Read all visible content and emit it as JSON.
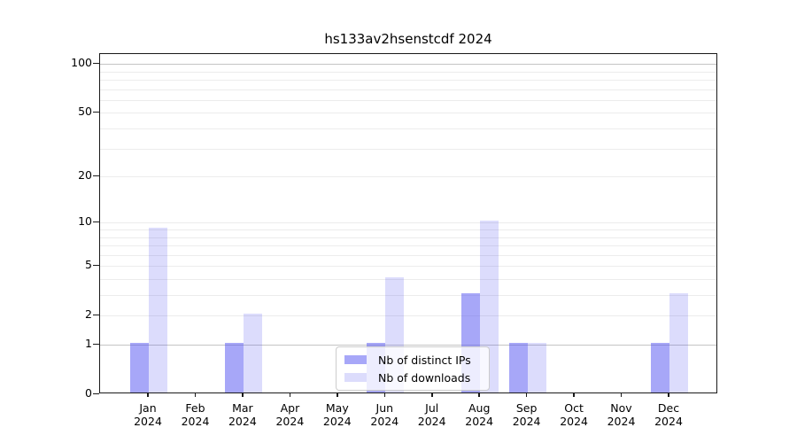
{
  "chart_data": {
    "type": "bar",
    "title": "hs133av2hsenstcdf 2024",
    "categories": [
      "Jan 2024",
      "Feb 2024",
      "Mar 2024",
      "Apr 2024",
      "May 2024",
      "Jun 2024",
      "Jul 2024",
      "Aug 2024",
      "Sep 2024",
      "Oct 2024",
      "Nov 2024",
      "Dec 2024"
    ],
    "series": [
      {
        "name": "Nb of distinct IPs",
        "color": "rgba(80,80,242,0.5)",
        "values": [
          1,
          0,
          1,
          0,
          0,
          1,
          0,
          3,
          1,
          0,
          0,
          1
        ]
      },
      {
        "name": "Nb of downloads",
        "color": "rgba(80,80,242,0.2)",
        "values": [
          9,
          0,
          2,
          0,
          0,
          4,
          0,
          10,
          1,
          0,
          0,
          3
        ]
      }
    ],
    "yscale": "log1p",
    "ylim": [
      0,
      115
    ],
    "yticks": [
      0,
      1,
      2,
      5,
      10,
      20,
      50,
      100
    ],
    "minor_yticks": [
      3,
      4,
      6,
      7,
      8,
      9,
      30,
      40,
      60,
      70,
      80,
      90
    ],
    "strong_gridlines": [
      1,
      100
    ],
    "grid": true,
    "legend_position": "lower center",
    "colors": {
      "grid_minor": "#ececec",
      "grid_strong": "#c4c4c4",
      "axis": "#1a1a1a"
    }
  }
}
